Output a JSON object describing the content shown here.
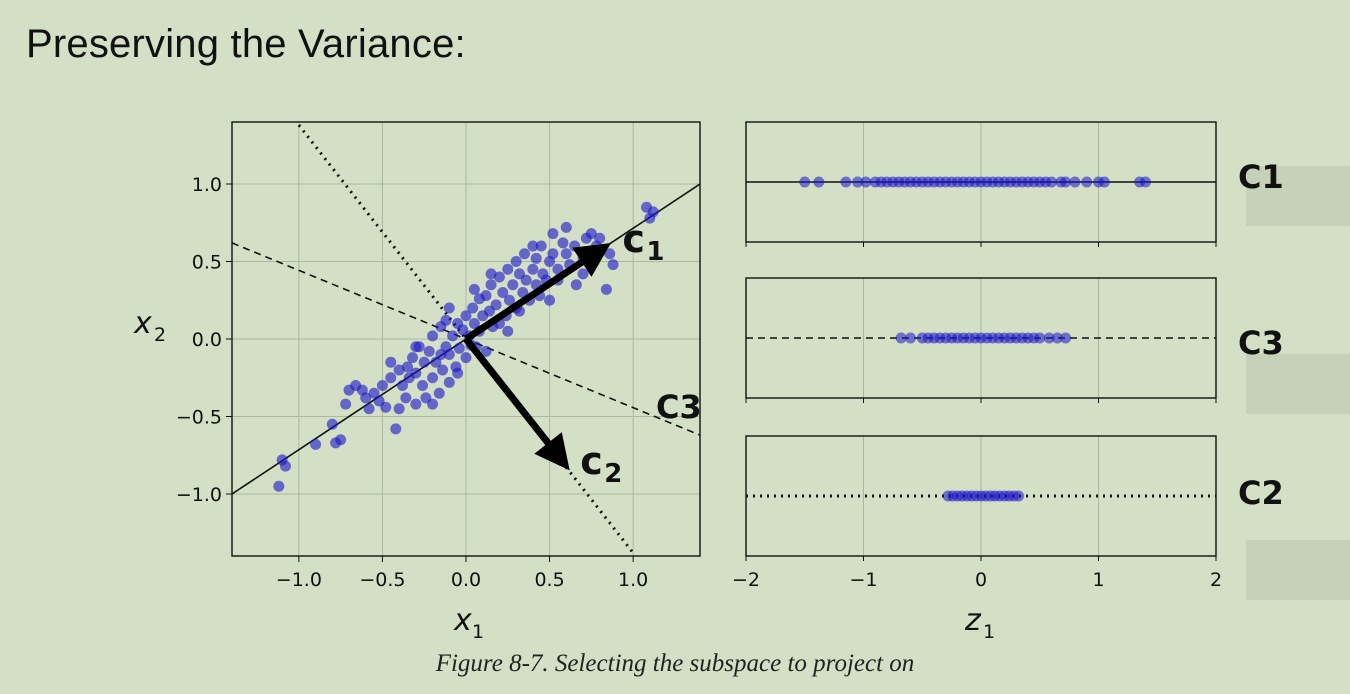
{
  "slide": {
    "title": "Preserving the Variance:",
    "caption": "Figure 8-7. Selecting the subspace to project on",
    "side_labels": [
      "C1",
      "C3",
      "C2"
    ],
    "inline_label": "C3"
  },
  "chart_data": [
    {
      "type": "scatter",
      "xlabel": "x1",
      "ylabel": "x2",
      "xlim": [
        -1.4,
        1.4
      ],
      "ylim": [
        -1.4,
        1.4
      ],
      "xticks": [
        "−1.0",
        "−0.5",
        "0.0",
        "0.5",
        "1.0"
      ],
      "yticks": [
        "1.0",
        "0.5",
        "0.0",
        "−0.5",
        "−1.0"
      ],
      "grid": true,
      "point_color": "#1a14c8",
      "points": [
        [
          -1.1,
          -0.78
        ],
        [
          -1.08,
          -0.82
        ],
        [
          -1.12,
          -0.95
        ],
        [
          -0.9,
          -0.68
        ],
        [
          -0.8,
          -0.55
        ],
        [
          -0.78,
          -0.67
        ],
        [
          -0.75,
          -0.65
        ],
        [
          -0.72,
          -0.42
        ],
        [
          -0.7,
          -0.33
        ],
        [
          -0.66,
          -0.3
        ],
        [
          -0.62,
          -0.33
        ],
        [
          -0.6,
          -0.38
        ],
        [
          -0.58,
          -0.45
        ],
        [
          -0.55,
          -0.35
        ],
        [
          -0.52,
          -0.4
        ],
        [
          -0.5,
          -0.3
        ],
        [
          -0.48,
          -0.44
        ],
        [
          -0.45,
          -0.25
        ],
        [
          -0.42,
          -0.58
        ],
        [
          -0.4,
          -0.2
        ],
        [
          -0.4,
          -0.45
        ],
        [
          -0.38,
          -0.3
        ],
        [
          -0.36,
          -0.38
        ],
        [
          -0.35,
          -0.18
        ],
        [
          -0.34,
          -0.25
        ],
        [
          -0.32,
          -0.12
        ],
        [
          -0.3,
          -0.42
        ],
        [
          -0.3,
          -0.22
        ],
        [
          -0.28,
          -0.05
        ],
        [
          -0.26,
          -0.3
        ],
        [
          -0.25,
          -0.15
        ],
        [
          -0.24,
          -0.38
        ],
        [
          -0.22,
          -0.08
        ],
        [
          -0.2,
          -0.25
        ],
        [
          -0.2,
          0.02
        ],
        [
          -0.18,
          -0.15
        ],
        [
          -0.16,
          -0.35
        ],
        [
          -0.15,
          0.08
        ],
        [
          -0.14,
          -0.2
        ],
        [
          -0.12,
          -0.05
        ],
        [
          -0.12,
          0.12
        ],
        [
          -0.1,
          -0.28
        ],
        [
          -0.1,
          -0.1
        ],
        [
          -0.08,
          0.02
        ],
        [
          -0.06,
          -0.18
        ],
        [
          -0.05,
          0.1
        ],
        [
          -0.04,
          -0.06
        ],
        [
          -0.02,
          0.06
        ],
        [
          0.0,
          -0.12
        ],
        [
          0.0,
          0.15
        ],
        [
          0.02,
          0.02
        ],
        [
          0.03,
          -0.04
        ],
        [
          0.04,
          0.2
        ],
        [
          0.05,
          0.1
        ],
        [
          0.06,
          -0.05
        ],
        [
          0.08,
          0.26
        ],
        [
          0.08,
          0.05
        ],
        [
          0.1,
          0.15
        ],
        [
          0.12,
          0.28
        ],
        [
          0.12,
          -0.08
        ],
        [
          0.14,
          0.18
        ],
        [
          0.15,
          0.35
        ],
        [
          0.16,
          0.08
        ],
        [
          0.18,
          0.22
        ],
        [
          0.2,
          0.4
        ],
        [
          0.2,
          0.1
        ],
        [
          0.22,
          0.3
        ],
        [
          0.24,
          0.15
        ],
        [
          0.25,
          0.45
        ],
        [
          0.26,
          0.25
        ],
        [
          0.28,
          0.35
        ],
        [
          0.3,
          0.2
        ],
        [
          0.3,
          0.5
        ],
        [
          0.32,
          0.42
        ],
        [
          0.34,
          0.3
        ],
        [
          0.35,
          0.55
        ],
        [
          0.36,
          0.38
        ],
        [
          0.38,
          0.25
        ],
        [
          0.4,
          0.45
        ],
        [
          0.42,
          0.35
        ],
        [
          0.42,
          0.52
        ],
        [
          0.44,
          0.28
        ],
        [
          0.45,
          0.6
        ],
        [
          0.46,
          0.42
        ],
        [
          0.48,
          0.38
        ],
        [
          0.5,
          0.5
        ],
        [
          0.5,
          0.25
        ],
        [
          0.52,
          0.55
        ],
        [
          0.55,
          0.45
        ],
        [
          0.55,
          0.38
        ],
        [
          0.58,
          0.62
        ],
        [
          0.6,
          0.72
        ],
        [
          0.6,
          0.55
        ],
        [
          0.62,
          0.48
        ],
        [
          0.65,
          0.6
        ],
        [
          0.66,
          0.35
        ],
        [
          0.7,
          0.52
        ],
        [
          0.72,
          0.65
        ],
        [
          0.75,
          0.68
        ],
        [
          0.78,
          0.6
        ],
        [
          0.8,
          0.65
        ],
        [
          0.84,
          0.32
        ],
        [
          0.86,
          0.55
        ],
        [
          0.88,
          0.48
        ],
        [
          1.08,
          0.85
        ],
        [
          1.12,
          0.82
        ],
        [
          1.1,
          0.78
        ],
        [
          -0.15,
          -0.1
        ],
        [
          -0.05,
          -0.22
        ],
        [
          0.05,
          0.32
        ],
        [
          -0.3,
          -0.05
        ],
        [
          0.15,
          0.42
        ],
        [
          0.32,
          0.18
        ],
        [
          -0.45,
          -0.15
        ],
        [
          0.4,
          0.6
        ],
        [
          -0.2,
          -0.42
        ],
        [
          0.52,
          0.68
        ],
        [
          0.25,
          0.05
        ],
        [
          -0.1,
          0.2
        ],
        [
          0.7,
          0.42
        ]
      ],
      "lines": {
        "c1": {
          "style": "solid",
          "through": [
            [
              -1.4,
              -1.0
            ],
            [
              1.4,
              1.0
            ]
          ]
        },
        "c3": {
          "style": "dashed",
          "through": [
            [
              -1.4,
              0.62
            ],
            [
              1.4,
              -0.62
            ]
          ]
        },
        "c2": {
          "style": "dotted",
          "through": [
            [
              -1.0,
              1.38
            ],
            [
              1.0,
              -1.38
            ]
          ]
        }
      },
      "vectors": [
        {
          "name": "c",
          "subscript": "1",
          "from": [
            0,
            0
          ],
          "to": [
            0.84,
            0.6
          ]
        },
        {
          "name": "c",
          "subscript": "2",
          "from": [
            0,
            0
          ],
          "to": [
            0.6,
            -0.82
          ]
        }
      ]
    },
    {
      "type": "strip",
      "xlabel": "z1",
      "xlim": [
        -2,
        2
      ],
      "xticks": [
        "−2",
        "−1",
        "0",
        "1",
        "2"
      ],
      "grid": true,
      "panels": [
        {
          "name": "C1",
          "style": "solid",
          "values": [
            -1.5,
            -1.38,
            -1.15,
            -1.05,
            -0.98,
            -0.9,
            -0.85,
            -0.8,
            -0.75,
            -0.7,
            -0.65,
            -0.6,
            -0.55,
            -0.5,
            -0.45,
            -0.4,
            -0.35,
            -0.3,
            -0.25,
            -0.2,
            -0.15,
            -0.1,
            -0.05,
            0,
            0.05,
            0.1,
            0.15,
            0.2,
            0.25,
            0.3,
            0.35,
            0.4,
            0.45,
            0.5,
            0.55,
            0.6,
            0.68,
            0.72,
            0.8,
            0.9,
            1.0,
            1.05,
            1.35,
            1.4
          ]
        },
        {
          "name": "C3",
          "style": "dashed",
          "values": [
            -0.68,
            -0.6,
            -0.5,
            -0.45,
            -0.4,
            -0.35,
            -0.3,
            -0.25,
            -0.2,
            -0.15,
            -0.1,
            -0.05,
            0,
            0.05,
            0.1,
            0.15,
            0.2,
            0.25,
            0.3,
            0.35,
            0.4,
            0.45,
            0.5,
            0.58,
            0.65,
            0.72
          ]
        },
        {
          "name": "C2",
          "style": "dotted",
          "values": [
            -0.28,
            -0.24,
            -0.2,
            -0.16,
            -0.12,
            -0.08,
            -0.04,
            0,
            0.04,
            0.08,
            0.12,
            0.16,
            0.2,
            0.24,
            0.28,
            0.32
          ]
        }
      ]
    }
  ]
}
